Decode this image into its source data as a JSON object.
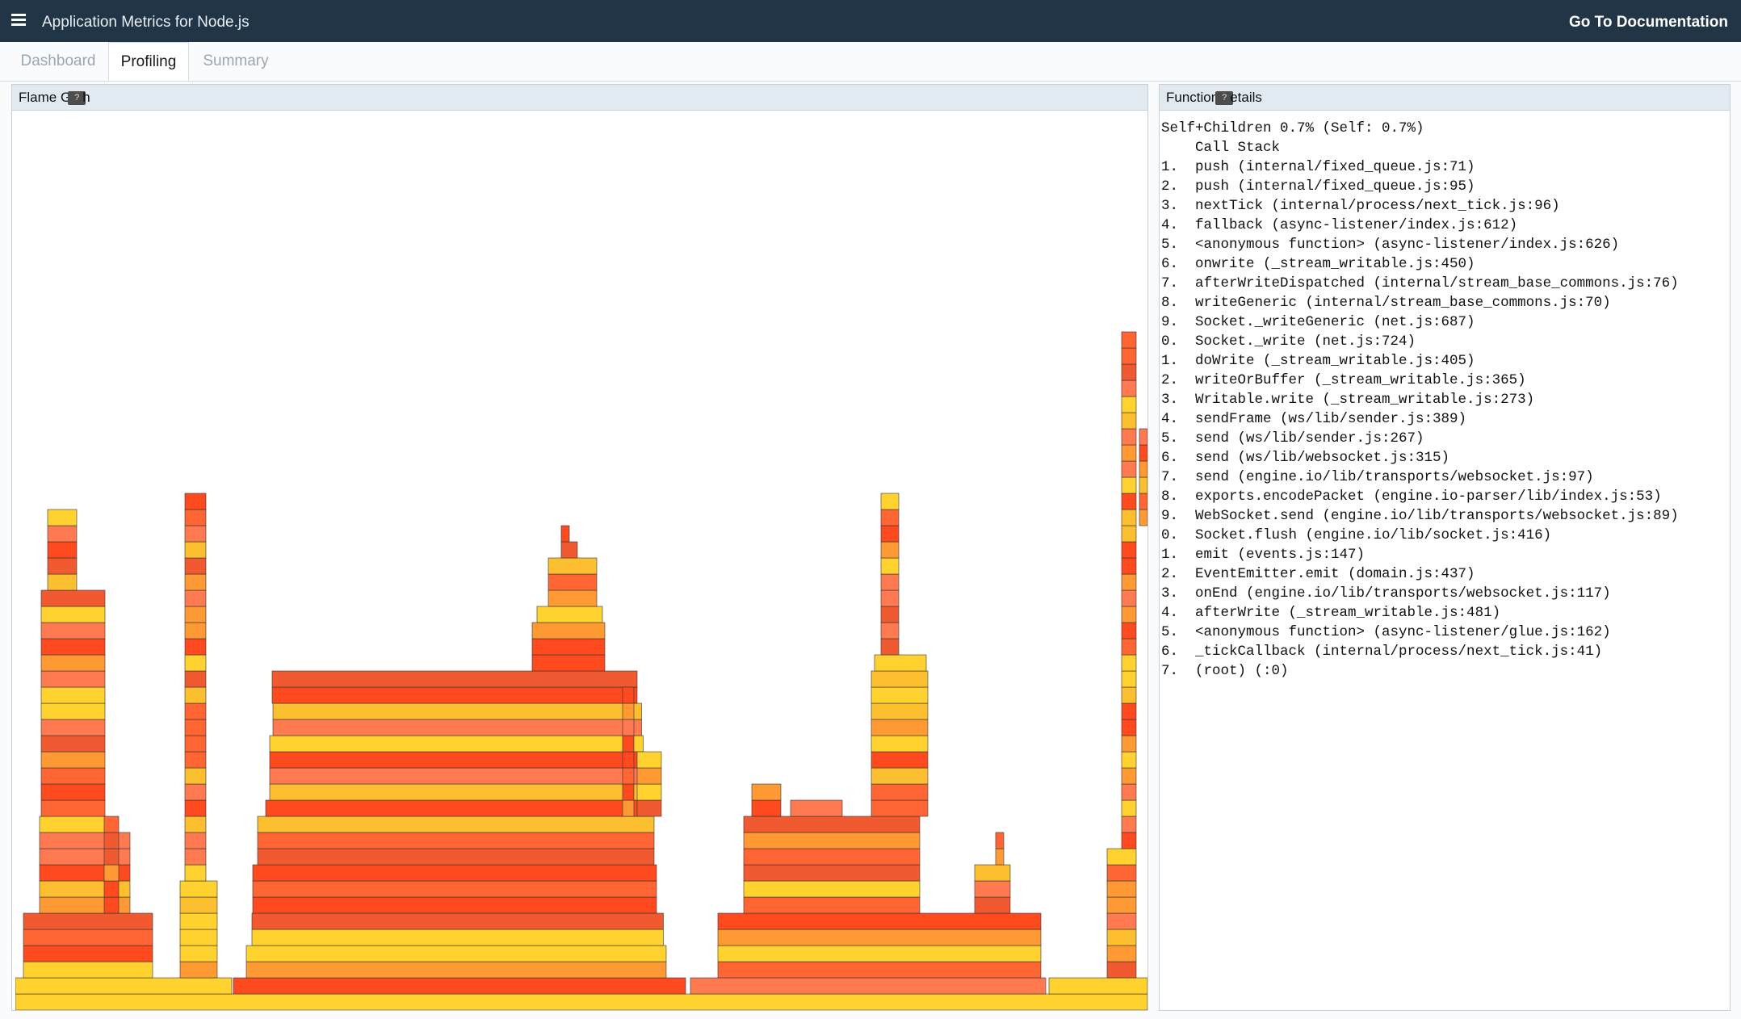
{
  "header": {
    "title": "Application Metrics for Node.js",
    "doc_link": "Go To Documentation"
  },
  "tabs": [
    {
      "label": "Dashboard",
      "active": false
    },
    {
      "label": "Profiling",
      "active": true
    },
    {
      "label": "Summary",
      "active": false
    }
  ],
  "flame_panel": {
    "title_before": "Flame G",
    "title_after": "h",
    "tooltip_glyph": "?"
  },
  "details_panel": {
    "title_before": "Function",
    "title_after": "etails",
    "tooltip_glyph": "?",
    "summary": "Self+Children 0.7% (Self: 0.7%)",
    "stack_heading": "Call Stack",
    "stack": [
      "1.  push (internal/fixed_queue.js:71)",
      "2.  push (internal/fixed_queue.js:95)",
      "3.  nextTick (internal/process/next_tick.js:96)",
      "4.  fallback (async-listener/index.js:612)",
      "5.  <anonymous function> (async-listener/index.js:626)",
      "6.  onwrite (_stream_writable.js:450)",
      "7.  afterWriteDispatched (internal/stream_base_commons.js:76)",
      "8.  writeGeneric (internal/stream_base_commons.js:70)",
      "9.  Socket._writeGeneric (net.js:687)",
      "0.  Socket._write (net.js:724)",
      "1.  doWrite (_stream_writable.js:405)",
      "2.  writeOrBuffer (_stream_writable.js:365)",
      "3.  Writable.write (_stream_writable.js:273)",
      "4.  sendFrame (ws/lib/sender.js:389)",
      "5.  send (ws/lib/sender.js:267)",
      "6.  send (ws/lib/websocket.js:315)",
      "7.  send (engine.io/lib/transports/websocket.js:97)",
      "8.  exports.encodePacket (engine.io-parser/lib/index.js:53)",
      "9.  WebSocket.send (engine.io/lib/transports/websocket.js:89)",
      "0.  Socket.flush (engine.io/lib/socket.js:416)",
      "1.  emit (events.js:147)",
      "2.  EventEmitter.emit (domain.js:437)",
      "3.  onEnd (engine.io/lib/transports/websocket.js:117)",
      "4.  afterWrite (_stream_writable.js:481)",
      "5.  <anonymous function> (async-listener/glue.js:162)",
      "6.  _tickCallback (internal/process/next_tick.js:41)",
      "7.  (root) (:0)"
    ]
  },
  "colors": {
    "header_bg": "#213547",
    "flame_palette": [
      "#fe4a1e",
      "#ff7a50",
      "#ff9933",
      "#ffd230",
      "#f15a30",
      "#fcbf30",
      "#ff6633"
    ]
  }
}
